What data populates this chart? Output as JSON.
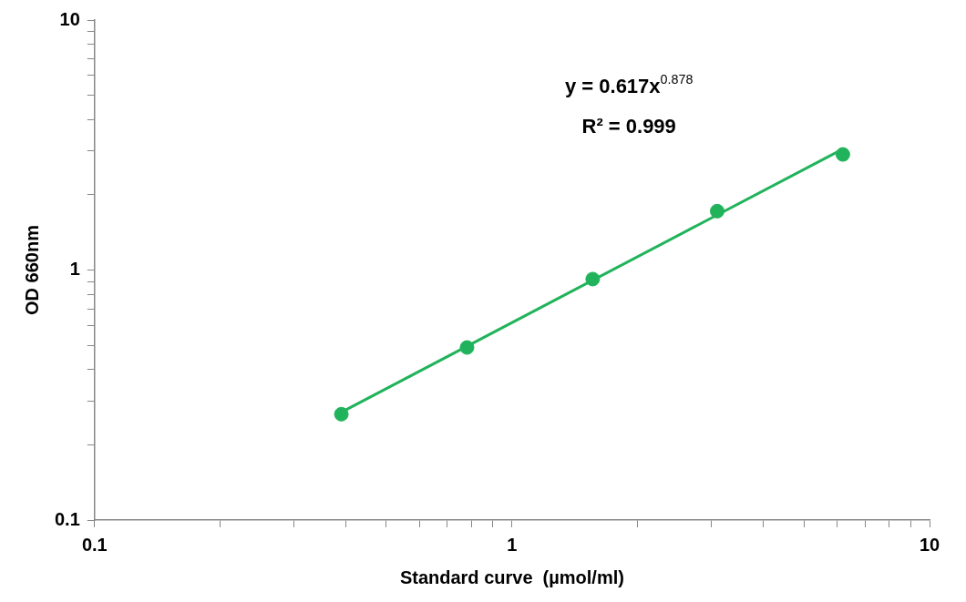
{
  "chart_data": {
    "type": "scatter",
    "xlabel": "Standard curve  (µmol/ml)",
    "ylabel": "OD 660nm",
    "log": "xy",
    "legend": false,
    "marker": "circle",
    "xlim": [
      0.1,
      10
    ],
    "ylim": [
      0.1,
      10
    ],
    "xticks": [
      {
        "value": 0.1,
        "label": "0.1"
      },
      {
        "value": 0.2,
        "label": null
      },
      {
        "value": 0.3,
        "label": null
      },
      {
        "value": 0.4,
        "label": null
      },
      {
        "value": 0.5,
        "label": null
      },
      {
        "value": 0.6,
        "label": null
      },
      {
        "value": 0.7,
        "label": null
      },
      {
        "value": 0.8,
        "label": null
      },
      {
        "value": 0.9,
        "label": null
      },
      1,
      {
        "value": 2,
        "label": null
      },
      {
        "value": 3,
        "label": null
      },
      {
        "value": 4,
        "label": null
      },
      {
        "value": 5,
        "label": null
      },
      {
        "value": 6,
        "label": null
      },
      {
        "value": 7,
        "label": null
      },
      {
        "value": 8,
        "label": null
      },
      {
        "value": 9,
        "label": null
      },
      10
    ],
    "yticks": [
      {
        "value": 0.1,
        "label": "0.1"
      },
      {
        "value": 0.2,
        "label": null
      },
      {
        "value": 0.3,
        "label": null
      },
      {
        "value": 0.4,
        "label": null
      },
      {
        "value": 0.5,
        "label": null
      },
      {
        "value": 0.6,
        "label": null
      },
      {
        "value": 0.7,
        "label": null
      },
      {
        "value": 0.8,
        "label": null
      },
      {
        "value": 0.9,
        "label": null
      },
      1,
      {
        "value": 2,
        "label": null
      },
      {
        "value": 3,
        "label": null
      },
      {
        "value": 4,
        "label": null
      },
      {
        "value": 5,
        "label": null
      },
      {
        "value": 6,
        "label": null
      },
      {
        "value": 7,
        "label": null
      },
      {
        "value": 8,
        "label": null
      },
      {
        "value": 9,
        "label": null
      },
      10
    ],
    "series": [
      {
        "color": "#21b35b",
        "x": [
          0.39,
          0.78,
          1.56,
          3.1,
          6.2
        ],
        "values": [
          0.265,
          0.49,
          0.92,
          1.72,
          2.9
        ]
      },
      {
        "type": "line",
        "color": "#21b35b",
        "marker": "none",
        "x": [
          0.39,
          6.2
        ],
        "values": [
          0.27,
          3.05
        ]
      }
    ],
    "annotations": [
      "y = 0.617x$^{0.878}$",
      "R² = 0.999"
    ]
  }
}
